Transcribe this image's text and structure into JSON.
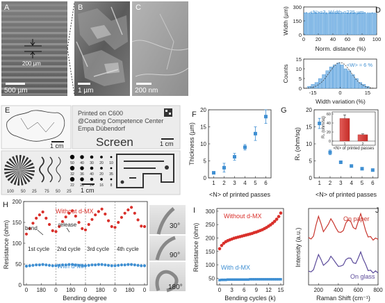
{
  "panel_letters": [
    "A",
    "B",
    "C",
    "D",
    "E",
    "F",
    "G",
    "H",
    "I",
    "J"
  ],
  "panelA": {
    "scale_label": "500 µm",
    "inset_label": "200 µm"
  },
  "panelB": {
    "scale_label": "1 µm"
  },
  "panelC": {
    "scale_label": "200 nm"
  },
  "panelE": {
    "left_scale": "1 cm",
    "right_scale": "1 cm",
    "bottom_scale": "1 cm",
    "print_lines": [
      "Printed on C600",
      "@Coating Competence Center",
      "Empa Dübendorf"
    ],
    "screen_word": "Screen",
    "dot_numbers": [
      "50",
      "40",
      "30",
      "20",
      "10",
      "32",
      "36",
      "40",
      "20",
      "35",
      "22",
      "28",
      "24",
      "16",
      "8"
    ],
    "bottom_numbers": [
      "100",
      "50",
      "25",
      "75",
      "50",
      "25"
    ]
  },
  "chart_data": [
    {
      "id": "D-top",
      "type": "bar",
      "annotation": "<N>=3, Width =235 µm",
      "xlabel": "Norm. distance (%)",
      "ylabel": "Width (µm)",
      "xlim": [
        0,
        100
      ],
      "ylim": [
        0,
        300
      ],
      "xticks": [
        "0",
        "20",
        "40",
        "60",
        "80",
        "100"
      ],
      "yticks": [
        "0",
        "150",
        "300"
      ],
      "values": [
        236,
        241,
        230,
        233,
        238,
        231,
        240,
        229,
        236,
        234,
        239,
        228,
        237,
        233,
        241,
        230,
        236,
        232,
        238,
        231,
        235,
        240,
        229,
        236,
        233,
        237,
        231,
        239,
        234,
        230,
        238,
        233,
        236,
        241,
        229,
        235,
        232,
        238,
        234,
        230
      ]
    },
    {
      "id": "D-bottom",
      "type": "bar",
      "annotation": "<W> ≈ 6 %",
      "xlabel": "Width variation (%)",
      "ylabel": "Counts",
      "xlim": [
        -20,
        20
      ],
      "ylim": [
        0,
        15
      ],
      "xticks": [
        "-15",
        "0",
        "15"
      ],
      "yticks": [
        "0",
        "5",
        "10",
        "15"
      ],
      "bins": [
        -17,
        -15,
        -13,
        -11,
        -9,
        -7,
        -5,
        -3,
        -1,
        1,
        3,
        5,
        7,
        9,
        11,
        13,
        15
      ],
      "values": [
        1,
        2,
        3,
        5,
        7,
        9,
        11,
        12,
        13,
        12,
        10,
        9,
        7,
        5,
        3,
        2,
        1
      ]
    },
    {
      "id": "F",
      "type": "scatter",
      "xlabel": "<N> of printed passes",
      "ylabel": "Thickness (µm)",
      "xlim": [
        0.5,
        6.5
      ],
      "ylim": [
        0,
        20
      ],
      "xticks": [
        "1",
        "2",
        "3",
        "4",
        "5",
        "6"
      ],
      "yticks": [
        "0",
        "5",
        "10",
        "15",
        "20"
      ],
      "x": [
        1,
        2,
        3,
        4,
        5,
        6
      ],
      "y": [
        1.5,
        3.0,
        6.2,
        9.0,
        13.0,
        18.0
      ],
      "err": [
        0.3,
        1.3,
        1.0,
        0.8,
        2.0,
        2.0
      ]
    },
    {
      "id": "G",
      "type": "scatter",
      "xlabel": "<N> of printed passes",
      "ylabel": "Rₛ (ohm/sq)",
      "xlim": [
        0.5,
        6.5
      ],
      "ylim": [
        0,
        20
      ],
      "xticks": [
        "1",
        "2",
        "3",
        "4",
        "5",
        "6"
      ],
      "yticks": [
        "0",
        "5",
        "10",
        "15",
        "20"
      ],
      "x": [
        1,
        2,
        3,
        4,
        5,
        6
      ],
      "y": [
        16.0,
        7.5,
        4.6,
        3.5,
        2.7,
        2.3
      ],
      "err": [
        1.5,
        0.7,
        0.4,
        0.3,
        0.2,
        0.2
      ],
      "inset": {
        "type": "bar",
        "categories": [
          "1",
          "2"
        ],
        "values": [
          50,
          14
        ],
        "err": [
          8,
          2
        ],
        "ylim": [
          0,
          60
        ],
        "yticks": [
          "0",
          "20",
          "40",
          "60"
        ],
        "ylabel": "Rₛ (ohm/sq)",
        "xlabel": "<N> of printed passes"
      }
    },
    {
      "id": "H",
      "type": "line",
      "xlabel": "Bending degree",
      "ylabel": "Resistance (ohm)",
      "ylim": [
        0,
        200
      ],
      "yticks": [
        "0",
        "50",
        "100",
        "150",
        "200"
      ],
      "xtick_labels": [
        "0",
        "180",
        "0",
        "180",
        "0",
        "180",
        "0",
        "180",
        "0"
      ],
      "cycle_labels": [
        "1st cycle",
        "2nd cycle",
        "3rd cycle",
        "4th cycle"
      ],
      "annotations": [
        "bend",
        "release"
      ],
      "series": [
        {
          "name": "Without d-MX",
          "color": "#d9302b",
          "values": [
            122,
            135,
            148,
            160,
            168,
            175,
            160,
            145,
            130,
            128,
            140,
            152,
            163,
            172,
            178,
            165,
            150,
            135,
            132,
            145,
            157,
            168,
            176,
            182,
            170,
            154,
            140,
            138,
            150,
            162,
            172,
            180,
            186,
            172,
            156,
            141,
            140
          ]
        },
        {
          "name": "With d-MX",
          "color": "#3f8fd2",
          "values": [
            45,
            46,
            47,
            48,
            48,
            49,
            48,
            47,
            46,
            46,
            47,
            48,
            48,
            49,
            49,
            48,
            47,
            46,
            46,
            47,
            48,
            48,
            49,
            49,
            48,
            47,
            46,
            46,
            47,
            48,
            48,
            49,
            49,
            48,
            47,
            46,
            46
          ]
        }
      ]
    },
    {
      "id": "I",
      "type": "scatter",
      "xlabel": "Bending cycles (k)",
      "ylabel": "Resistance (ohm)",
      "xlim": [
        0,
        15
      ],
      "ylim": [
        0,
        300
      ],
      "xticks": [
        "0",
        "3",
        "6",
        "9",
        "12",
        "15"
      ],
      "yticks": [
        "50",
        "100",
        "150",
        "200",
        "250",
        "300"
      ],
      "series": [
        {
          "name": "Without d-MX",
          "color": "#d9302b",
          "x": [
            0,
            0.5,
            1,
            1.5,
            2,
            2.5,
            3,
            3.5,
            4,
            4.5,
            5,
            5.5,
            6,
            6.5,
            7,
            7.5,
            8,
            8.5,
            9,
            9.5,
            10,
            10.5,
            11,
            11.5,
            12,
            12.5,
            13,
            13.5,
            14,
            14.5,
            15
          ],
          "y": [
            160,
            172,
            180,
            186,
            190,
            193,
            196,
            199,
            201,
            203,
            205,
            207,
            209,
            211,
            213,
            215,
            217,
            220,
            222,
            225,
            228,
            231,
            235,
            239,
            244,
            249,
            255,
            262,
            270,
            280,
            293
          ]
        },
        {
          "name": "With d-MX",
          "color": "#3f8fd2",
          "x": [
            0,
            0.5,
            1,
            1.5,
            2,
            2.5,
            3,
            3.5,
            4,
            4.5,
            5,
            5.5,
            6,
            6.5,
            7,
            7.5,
            8,
            8.5,
            9,
            9.5,
            10,
            10.5,
            11,
            11.5,
            12,
            12.5,
            13,
            13.5,
            14,
            14.5,
            15
          ],
          "y": [
            43,
            44,
            44,
            44,
            45,
            45,
            45,
            45,
            45,
            45,
            45,
            45,
            45,
            45,
            45,
            46,
            46,
            46,
            46,
            46,
            46,
            46,
            46,
            46,
            46,
            46,
            46,
            46,
            46,
            46,
            46
          ]
        }
      ]
    },
    {
      "id": "J",
      "type": "line",
      "xlabel": "Raman Shift (cm⁻¹)",
      "ylabel": "Intensity (a.u.)",
      "xlim": [
        100,
        800
      ],
      "xticks": [
        "200",
        "400",
        "600",
        "800"
      ],
      "series": [
        {
          "name": "On paper",
          "color": "#c8352d",
          "x": [
            100,
            125,
            150,
            175,
            200,
            225,
            250,
            275,
            300,
            325,
            350,
            375,
            400,
            425,
            450,
            475,
            500,
            525,
            550,
            575,
            600,
            625,
            650,
            675,
            700,
            725,
            750,
            775,
            800
          ],
          "y": [
            0.62,
            0.6,
            0.64,
            0.78,
            0.9,
            0.8,
            0.7,
            0.74,
            0.8,
            0.86,
            0.82,
            0.74,
            0.7,
            0.68,
            0.72,
            0.8,
            0.86,
            0.82,
            0.76,
            0.72,
            0.84,
            0.92,
            0.84,
            0.7,
            0.64,
            0.62,
            0.6,
            0.6,
            0.61
          ]
        },
        {
          "name": "On glass",
          "color": "#5b4a9a",
          "x": [
            100,
            125,
            150,
            175,
            200,
            225,
            250,
            275,
            300,
            325,
            350,
            375,
            400,
            425,
            450,
            475,
            500,
            525,
            550,
            575,
            600,
            625,
            650,
            675,
            700,
            725,
            750,
            775,
            800
          ],
          "y": [
            0.18,
            0.17,
            0.2,
            0.3,
            0.4,
            0.33,
            0.26,
            0.28,
            0.32,
            0.37,
            0.34,
            0.28,
            0.25,
            0.24,
            0.27,
            0.32,
            0.36,
            0.34,
            0.3,
            0.27,
            0.36,
            0.42,
            0.35,
            0.26,
            0.2,
            0.18,
            0.17,
            0.17,
            0.17
          ]
        }
      ]
    }
  ],
  "photos": {
    "angles": [
      "30°",
      "90°",
      "180°"
    ]
  },
  "colors": {
    "red": "#d9302b",
    "blue": "#3f8fd2",
    "sem_bg": "#6f6f6f"
  }
}
